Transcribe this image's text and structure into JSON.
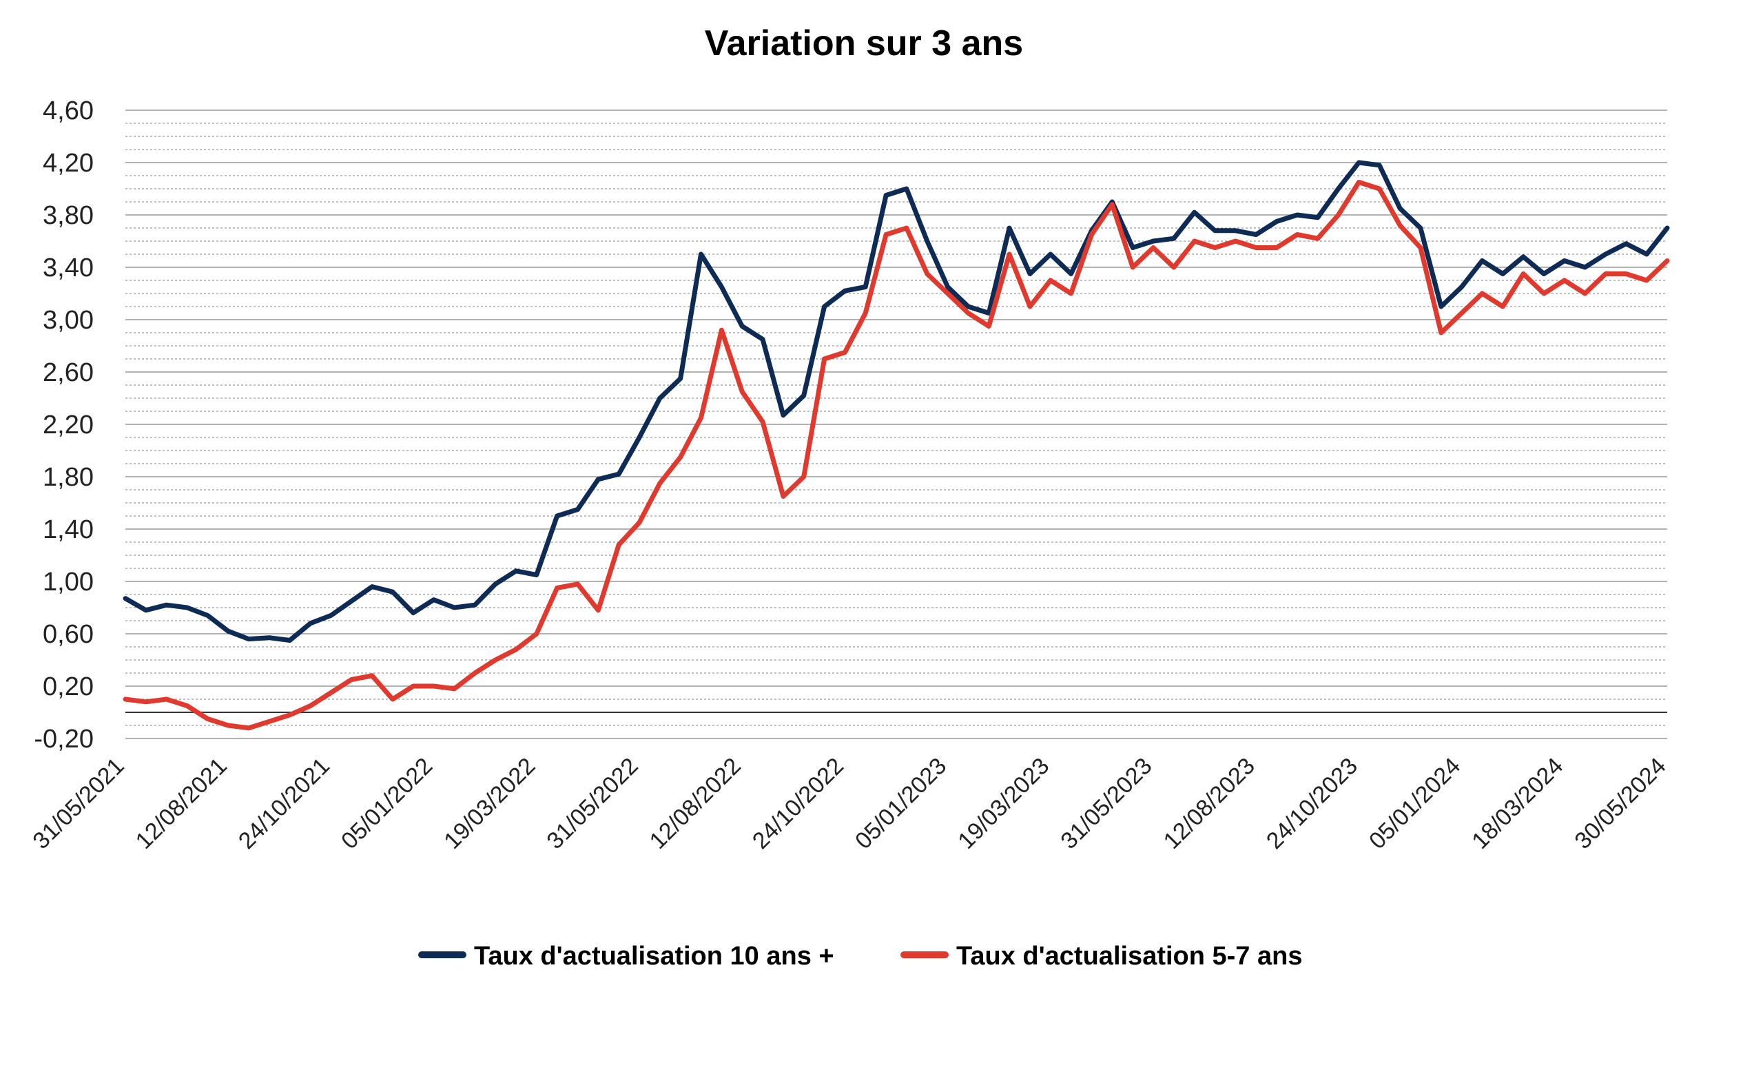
{
  "chart_data": {
    "type": "line",
    "title": "Variation sur 3 ans",
    "xlabel": "",
    "ylabel": "",
    "ylim": [
      -0.2,
      4.6
    ],
    "y_ticks": [
      "-0,20",
      "0,20",
      "0,60",
      "1,00",
      "1,40",
      "1,80",
      "2,20",
      "2,60",
      "3,00",
      "3,40",
      "3,80",
      "4,20",
      "4,60"
    ],
    "x_ticks": [
      "31/05/2021",
      "12/08/2021",
      "24/10/2021",
      "05/01/2022",
      "19/03/2022",
      "31/05/2022",
      "12/08/2022",
      "24/10/2022",
      "05/01/2023",
      "19/03/2023",
      "31/05/2023",
      "12/08/2023",
      "24/10/2023",
      "05/01/2024",
      "18/03/2024",
      "30/05/2024"
    ],
    "grid": "horizontal",
    "legend_position": "bottom",
    "colors": {
      "series_10": "#0d2b55",
      "series_57": "#e03a2e",
      "grid": "#9a9a9a",
      "zero_line": "#333333"
    },
    "series": [
      {
        "name": "Taux d'actualisation 10 ans +",
        "color": "#0d2b55",
        "values": [
          0.87,
          0.78,
          0.82,
          0.8,
          0.74,
          0.62,
          0.56,
          0.57,
          0.55,
          0.68,
          0.74,
          0.85,
          0.96,
          0.92,
          0.76,
          0.86,
          0.8,
          0.82,
          0.98,
          1.08,
          1.05,
          1.5,
          1.55,
          1.78,
          1.82,
          2.1,
          2.4,
          2.55,
          3.5,
          3.25,
          2.95,
          2.85,
          2.27,
          2.42,
          3.1,
          3.22,
          3.25,
          3.95,
          4.0,
          3.6,
          3.25,
          3.1,
          3.05,
          3.7,
          3.35,
          3.5,
          3.35,
          3.68,
          3.9,
          3.55,
          3.6,
          3.62,
          3.82,
          3.68,
          3.68,
          3.65,
          3.75,
          3.8,
          3.78,
          4.0,
          4.2,
          4.18,
          3.85,
          3.7,
          3.1,
          3.25,
          3.45,
          3.35,
          3.48,
          3.35,
          3.45,
          3.4,
          3.5,
          3.58,
          3.5,
          3.7
        ]
      },
      {
        "name": "Taux d'actualisation 5-7 ans",
        "color": "#e03a2e",
        "values": [
          0.1,
          0.08,
          0.1,
          0.05,
          -0.05,
          -0.1,
          -0.12,
          -0.07,
          -0.02,
          0.05,
          0.15,
          0.25,
          0.28,
          0.1,
          0.2,
          0.2,
          0.18,
          0.3,
          0.4,
          0.48,
          0.6,
          0.95,
          0.98,
          0.78,
          1.28,
          1.45,
          1.75,
          1.95,
          2.25,
          2.92,
          2.45,
          2.22,
          1.65,
          1.8,
          2.7,
          2.75,
          3.05,
          3.65,
          3.7,
          3.35,
          3.2,
          3.05,
          2.95,
          3.5,
          3.1,
          3.3,
          3.2,
          3.65,
          3.88,
          3.4,
          3.55,
          3.4,
          3.6,
          3.55,
          3.6,
          3.55,
          3.55,
          3.65,
          3.62,
          3.8,
          4.05,
          4.0,
          3.72,
          3.55,
          2.9,
          3.05,
          3.2,
          3.1,
          3.35,
          3.2,
          3.3,
          3.2,
          3.35,
          3.35,
          3.3,
          3.45
        ]
      }
    ]
  }
}
